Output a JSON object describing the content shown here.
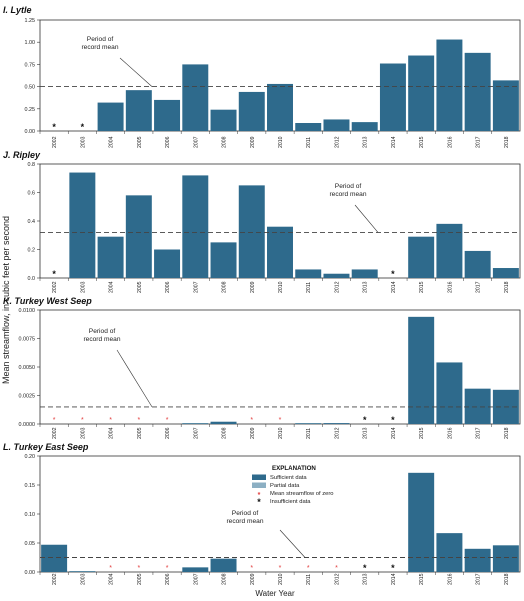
{
  "ylabel": "Mean streamflow, in cubic feet per second",
  "xlabel": "Water Year",
  "colors": {
    "sufficient": "#2e6a8c",
    "partial": "#8cafc3",
    "zero_marker": "#e23a3a",
    "insufficient_marker": "#111111",
    "mean_line": "#444444"
  },
  "legend": {
    "title": "EXPLANATION",
    "items": [
      {
        "label": "Sufficient data",
        "kind": "sufficient"
      },
      {
        "label": "Partial data",
        "kind": "partial"
      },
      {
        "label": "Mean streamflow of zero",
        "kind": "zero"
      },
      {
        "label": "Insufficient data",
        "kind": "insufficient"
      }
    ]
  },
  "annotation_line1": "Period of",
  "annotation_line2": "record mean",
  "chart_data": [
    {
      "type": "bar",
      "title": "I. Lytle",
      "categories": [
        "2002",
        "2003",
        "2004",
        "2005",
        "2006",
        "2007",
        "2008",
        "2009",
        "2010",
        "2011",
        "2012",
        "2013",
        "2014",
        "2015",
        "2016",
        "2017",
        "2018"
      ],
      "values": [
        null,
        null,
        0.32,
        0.46,
        0.35,
        0.75,
        0.24,
        0.44,
        0.53,
        0.09,
        0.13,
        0.1,
        0.76,
        0.85,
        1.03,
        0.88,
        0.57
      ],
      "status": [
        "insufficient",
        "insufficient",
        "sufficient",
        "sufficient",
        "sufficient",
        "sufficient",
        "sufficient",
        "sufficient",
        "sufficient",
        "sufficient",
        "sufficient",
        "sufficient",
        "sufficient",
        "sufficient",
        "sufficient",
        "sufficient",
        "sufficient"
      ],
      "mean": 0.5,
      "ylim": [
        0,
        1.25
      ],
      "yticks": [
        0.0,
        0.25,
        0.5,
        0.75,
        1.0,
        1.25
      ],
      "ytick_labels": [
        "0.00",
        "0.25",
        "0.50",
        "0.75",
        "1.00",
        "1.25"
      ],
      "grid": false
    },
    {
      "type": "bar",
      "title": "J. Ripley",
      "categories": [
        "2002",
        "2003",
        "2004",
        "2005",
        "2006",
        "2007",
        "2008",
        "2009",
        "2010",
        "2011",
        "2012",
        "2013",
        "2014",
        "2015",
        "2016",
        "2017",
        "2018"
      ],
      "values": [
        null,
        0.74,
        0.29,
        0.58,
        0.2,
        0.72,
        0.25,
        0.65,
        0.36,
        0.06,
        0.03,
        0.06,
        null,
        0.29,
        0.38,
        0.19,
        0.07
      ],
      "status": [
        "insufficient",
        "sufficient",
        "sufficient",
        "sufficient",
        "sufficient",
        "sufficient",
        "sufficient",
        "sufficient",
        "sufficient",
        "sufficient",
        "sufficient",
        "sufficient",
        "insufficient",
        "sufficient",
        "sufficient",
        "sufficient",
        "sufficient"
      ],
      "mean": 0.32,
      "ylim": [
        0,
        0.8
      ],
      "yticks": [
        0.0,
        0.2,
        0.4,
        0.6,
        0.8
      ],
      "ytick_labels": [
        "0.0",
        "0.2",
        "0.4",
        "0.6",
        "0.8"
      ],
      "grid": false
    },
    {
      "type": "bar",
      "title": "K. Turkey West Seep",
      "categories": [
        "2002",
        "2003",
        "2004",
        "2005",
        "2006",
        "2007",
        "2008",
        "2009",
        "2010",
        "2011",
        "2012",
        "2013",
        "2014",
        "2015",
        "2016",
        "2017",
        "2018"
      ],
      "values": [
        0,
        0,
        0,
        0,
        0,
        5e-05,
        0.0002,
        0,
        0,
        3e-05,
        8e-05,
        null,
        null,
        0.0094,
        0.0054,
        0.0031,
        0.003
      ],
      "status": [
        "zero",
        "zero",
        "zero",
        "zero",
        "zero",
        "sufficient",
        "sufficient",
        "zero",
        "zero",
        "sufficient",
        "sufficient",
        "insufficient",
        "insufficient",
        "sufficient",
        "sufficient",
        "sufficient",
        "sufficient"
      ],
      "mean": 0.0015,
      "ylim": [
        0,
        0.01
      ],
      "yticks": [
        0,
        0.0025,
        0.005,
        0.0075,
        0.01
      ],
      "ytick_labels": [
        "0.0000",
        "0.0025",
        "0.0050",
        "0.0075",
        "0.0100"
      ],
      "grid": false
    },
    {
      "type": "bar",
      "title": "L. Turkey East Seep",
      "categories": [
        "2002",
        "2003",
        "2004",
        "2005",
        "2006",
        "2007",
        "2008",
        "2009",
        "2010",
        "2011",
        "2012",
        "2013",
        "2014",
        "2015",
        "2016",
        "2017",
        "2018"
      ],
      "values": [
        0.047,
        0.001,
        0,
        0,
        0,
        0.008,
        0.023,
        0,
        0,
        0,
        0,
        null,
        null,
        0.171,
        0.067,
        0.04,
        0.046
      ],
      "status": [
        "sufficient",
        "sufficient",
        "zero",
        "zero",
        "zero",
        "sufficient",
        "sufficient",
        "zero",
        "zero",
        "zero",
        "zero",
        "insufficient",
        "insufficient",
        "sufficient",
        "sufficient",
        "sufficient",
        "sufficient"
      ],
      "mean": 0.025,
      "ylim": [
        0,
        0.2
      ],
      "yticks": [
        0,
        0.05,
        0.1,
        0.15,
        0.2
      ],
      "ytick_labels": [
        "0.00",
        "0.05",
        "0.10",
        "0.15",
        "0.20"
      ],
      "grid": false
    }
  ]
}
